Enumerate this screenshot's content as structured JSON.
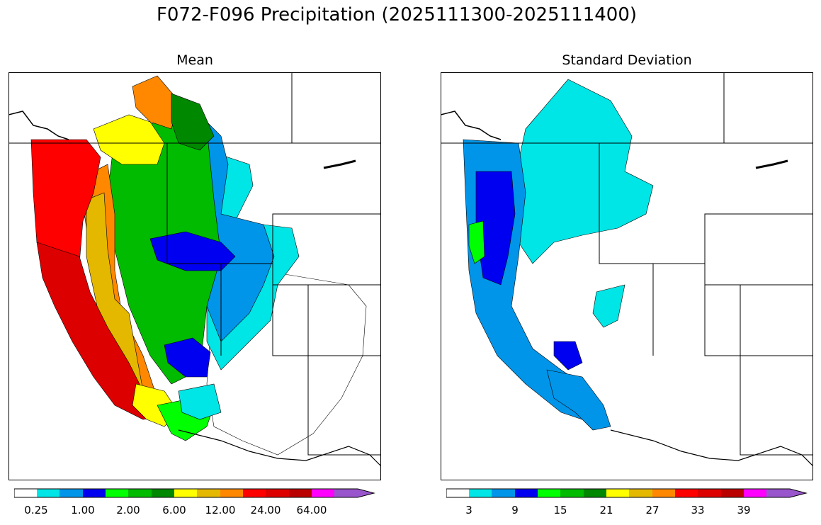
{
  "title": "F072-F096 Precipitation (2025111300-2025111400)",
  "panels": [
    {
      "title": "Mean",
      "colorbar": {
        "colors": [
          "#ffffff",
          "#00e5e5",
          "#0095e9",
          "#0000f0",
          "#00ff00",
          "#00bb00",
          "#008800",
          "#ffff00",
          "#e5b800",
          "#ff8800",
          "#ff0000",
          "#dd0000",
          "#bb0000",
          "#ff00ff",
          "#9955cc"
        ],
        "tick_labels": [
          "0.25",
          "1.00",
          "2.00",
          "6.00",
          "12.00",
          "24.00",
          "64.00"
        ]
      }
    },
    {
      "title": "Standard Deviation",
      "colorbar": {
        "colors": [
          "#ffffff",
          "#00e5e5",
          "#0095e9",
          "#0000f0",
          "#00ff00",
          "#00bb00",
          "#008800",
          "#ffff00",
          "#e5b800",
          "#ff8800",
          "#ff0000",
          "#dd0000",
          "#bb0000",
          "#ff00ff",
          "#9955cc"
        ],
        "tick_labels": [
          "3",
          "9",
          "15",
          "21",
          "27",
          "33",
          "39"
        ]
      }
    }
  ],
  "mean_regions": [
    {
      "name": "coastal-california",
      "color": "#dd0000"
    },
    {
      "name": "oregon-coast",
      "color": "#ff0000"
    },
    {
      "name": "sierra-foothills",
      "color": "#ff8800"
    },
    {
      "name": "northern-idaho",
      "color": "#ffff00"
    },
    {
      "name": "great-basin",
      "color": "#00bb00"
    },
    {
      "name": "utah-basin",
      "color": "#0000f0"
    },
    {
      "name": "eastern-fringe",
      "color": "#0095e9"
    },
    {
      "name": "eastern-edge",
      "color": "#00e5e5"
    }
  ],
  "std_regions": [
    {
      "name": "coastal-band",
      "color": "#0095e9"
    },
    {
      "name": "oregon-core",
      "color": "#0000f0"
    },
    {
      "name": "north-coast-green",
      "color": "#00ff00"
    },
    {
      "name": "interior-northwest",
      "color": "#00e5e5"
    },
    {
      "name": "southern-california",
      "color": "#0095e9"
    }
  ]
}
